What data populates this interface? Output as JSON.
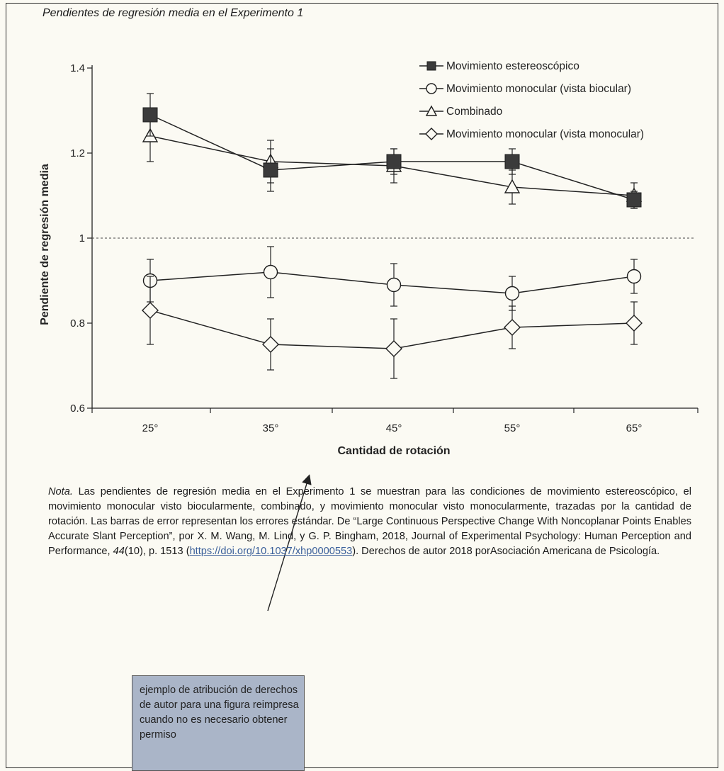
{
  "figure_title": "Pendientes de regresión media en el Experimento 1",
  "chart_data": {
    "type": "line",
    "title": "",
    "xlabel": "Cantidad de rotación",
    "ylabel": "Pendiente de regresión media",
    "categories": [
      "25°",
      "35°",
      "45°",
      "55°",
      "65°"
    ],
    "ylim": [
      0.6,
      1.4
    ],
    "yticks": [
      "0.6",
      "0.8",
      "1",
      "1.2",
      "1.4"
    ],
    "reference_line": 1.0,
    "legend_position": "top-right",
    "series": [
      {
        "name": "Movimiento estereoscópico",
        "marker": "square-filled",
        "values": [
          1.29,
          1.16,
          1.18,
          1.18,
          1.09
        ],
        "err": [
          0.05,
          0.05,
          0.03,
          0.03,
          0.02
        ]
      },
      {
        "name": "Movimiento monocular (vista biocular)",
        "marker": "circle-open",
        "values": [
          0.9,
          0.92,
          0.89,
          0.87,
          0.91
        ],
        "err": [
          0.05,
          0.06,
          0.05,
          0.04,
          0.04
        ]
      },
      {
        "name": "Combinado",
        "marker": "triangle-open",
        "values": [
          1.24,
          1.18,
          1.17,
          1.12,
          1.1
        ],
        "err": [
          0.06,
          0.05,
          0.04,
          0.04,
          0.03
        ]
      },
      {
        "name": "Movimiento monocular (vista monocular)",
        "marker": "diamond-open",
        "values": [
          0.83,
          0.75,
          0.74,
          0.79,
          0.8
        ],
        "err": [
          0.08,
          0.06,
          0.07,
          0.05,
          0.05
        ]
      }
    ]
  },
  "note": {
    "label": "Nota.",
    "text_before_link": " Las pendientes de regresión media en el Experimento 1 se muestran para las condiciones de movimiento estereoscópico, el movimiento monocular visto biocularmente, combinado, y movimiento monocular visto monocularmente, trazadas por la cantidad de rotación. Las barras de error representan los errores estándar. De “Large Continuous Perspective Change With Noncoplanar Points Enables Accurate Slant Perception”, por X. M. Wang, M. Lind, y G. P. Bingham, 2018, Journal of Experimental Psychology: Human Perception and Performance, ",
    "volume": "44",
    "text_mid": "(10), p. 1513 (",
    "link": "https://doi.org/10.1037/xhp0000553",
    "text_after_link": "). Derechos de autor 2018 porAsociación Americana de Psicología."
  },
  "callout": {
    "text": "ejemplo de atribución de derechos de autor para una figura reimpresa cuando no es necesario obtener permiso"
  }
}
